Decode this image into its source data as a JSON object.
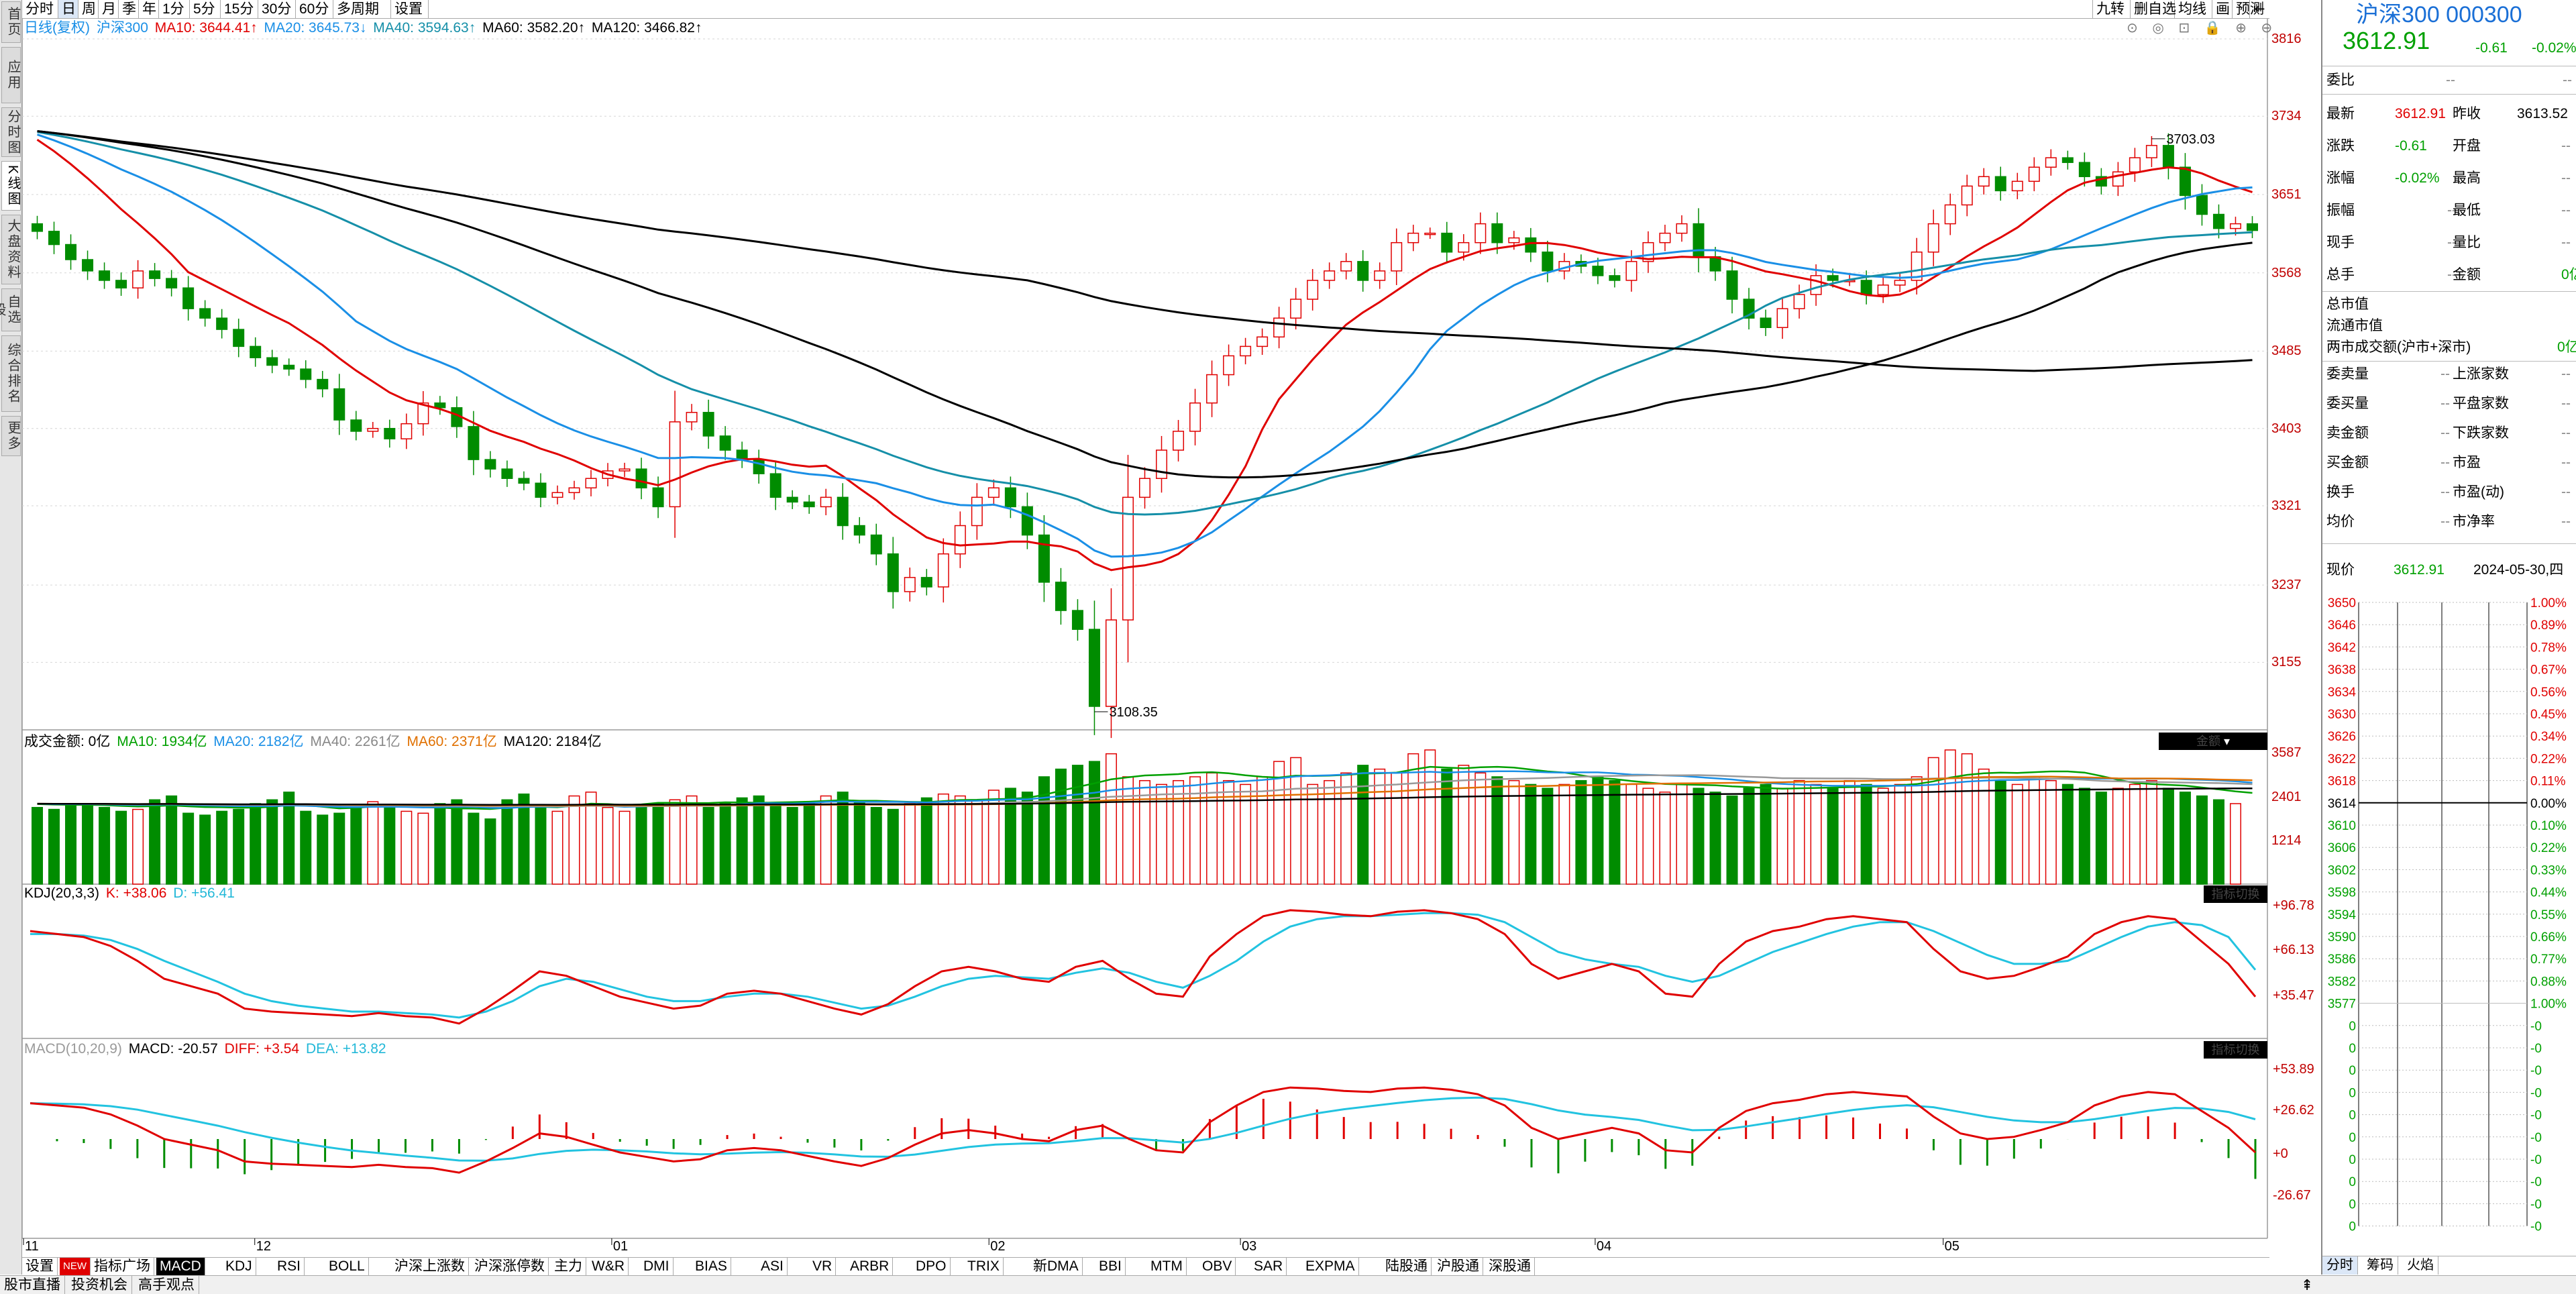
{
  "left_tabs": [
    "首页",
    "应用",
    "分时图",
    "K线图",
    "大盘资料",
    "自选股",
    "综合排名",
    "更多"
  ],
  "period_tabs": [
    "分时",
    "日",
    "周",
    "月",
    "季",
    "年",
    "1分",
    "5分",
    "15分",
    "30分",
    "60分",
    "多周期",
    "设置"
  ],
  "right_tools": [
    "九转",
    "删自选",
    "均线",
    "画",
    "预测"
  ],
  "main_legend": {
    "period": "日线(复权)",
    "name": "沪深300",
    "ma10": "MA10: 3644.41↑",
    "ma20": "MA20: 3645.73↓",
    "ma40": "MA40: 3594.63↑",
    "ma60": "MA60: 3582.20↑",
    "ma120": "MA120: 3466.82↑"
  },
  "price_axis": [
    "3816",
    "3734",
    "3651",
    "3568",
    "3485",
    "3403",
    "3321",
    "3237",
    "3155"
  ],
  "annotations": {
    "high": "3703.03",
    "low": "3108.35"
  },
  "volume_legend": {
    "label": "成交金额: 0亿",
    "ma10": "MA10: 1934亿",
    "ma20": "MA20: 2182亿",
    "ma40": "MA40: 2261亿",
    "ma60": "MA60: 2371亿",
    "ma120": "MA120: 2184亿"
  },
  "volume_axis": [
    "3587",
    "2401",
    "1214"
  ],
  "vol_tag": "金额",
  "kdj_legend": {
    "label": "KDJ(20,3,3)",
    "k": "K: +38.06",
    "d": "D: +56.41"
  },
  "kdj_axis": [
    "+96.78",
    "+66.13",
    "+35.47"
  ],
  "macd_legend": {
    "label": "MACD(10,20,9)",
    "macd": "MACD: -20.57",
    "diff": "DIFF: +3.54",
    "dea": "DEA: +13.82"
  },
  "macd_axis": [
    "+53.89",
    "+26.62",
    "+0",
    "-26.67"
  ],
  "ind_tag": "指标切换",
  "date_axis": [
    "11",
    "12",
    "01",
    "02",
    "03",
    "04",
    "05"
  ],
  "bottom_tabs": [
    "设置",
    "NEW",
    "指标广场",
    "MACD",
    "KDJ",
    "RSI",
    "BOLL",
    "沪深上涨数",
    "沪深涨停数",
    "主力",
    "W&R",
    "DMI",
    "BIAS",
    "ASI",
    "VR",
    "ARBR",
    "DPO",
    "TRIX",
    "新DMA",
    "BBI",
    "MTM",
    "OBV",
    "SAR",
    "EXPMA",
    "陆股通",
    "沪股通",
    "深股通"
  ],
  "status_tabs": [
    "股市直播",
    "投资机会",
    "高手观点"
  ],
  "right_panel": {
    "title": "沪深300 000300",
    "price": "3612.91",
    "change": "-0.61",
    "pct": "-0.02%",
    "weibi_label": "委比",
    "weibi": "--",
    "weicha": "--",
    "quote": [
      {
        "l": "最新",
        "v": "3612.91",
        "c": "red",
        "l2": "昨收",
        "v2": "3613.52",
        "c2": "blk"
      },
      {
        "l": "涨跌",
        "v": "-0.61",
        "c": "grn",
        "l2": "开盘",
        "v2": "--",
        "c2": "gry"
      },
      {
        "l": "涨幅",
        "v": "-0.02%",
        "c": "grn",
        "l2": "最高",
        "v2": "--",
        "c2": "gry"
      },
      {
        "l": "振幅",
        "v": "--",
        "c": "gry",
        "l2": "最低",
        "v2": "--",
        "c2": "gry"
      },
      {
        "l": "现手",
        "v": "--",
        "c": "gry",
        "l2": "量比",
        "v2": "--",
        "c2": "gry"
      },
      {
        "l": "总手",
        "v": "--",
        "c": "gry",
        "l2": "金额",
        "v2": "0亿",
        "c2": "grn"
      }
    ],
    "mkt_total": "总市值",
    "mkt_float": "流通市值",
    "mkt_turn": "两市成交额(沪市+深市)",
    "mkt_turn_v": "0亿",
    "stats": [
      {
        "l": "委卖量",
        "v": "--",
        "l2": "上涨家数",
        "v2": "--"
      },
      {
        "l": "委买量",
        "v": "--",
        "l2": "平盘家数",
        "v2": "--"
      },
      {
        "l": "卖金额",
        "v": "--",
        "l2": "下跌家数",
        "v2": "--"
      },
      {
        "l": "买金额",
        "v": "--",
        "l2": "市盈",
        "v2": "--"
      },
      {
        "l": "换手",
        "v": "--",
        "l2": "市盈(动)",
        "v2": "--"
      },
      {
        "l": "均价",
        "v": "--",
        "l2": "市净率",
        "v2": "--"
      }
    ],
    "now_label": "现价",
    "now_price": "3612.91",
    "now_date": "2024-05-30,四",
    "grid_left": [
      "3650",
      "3646",
      "3642",
      "3638",
      "3634",
      "3630",
      "3626",
      "3622",
      "3618",
      "3614",
      "3610",
      "3606",
      "3602",
      "3598",
      "3594",
      "3590",
      "3586",
      "3582",
      "3577",
      "0",
      "0",
      "0",
      "0",
      "0",
      "0",
      "0",
      "0",
      "0",
      "0"
    ],
    "grid_right": [
      "1.00%",
      "0.89%",
      "0.78%",
      "0.67%",
      "0.56%",
      "0.45%",
      "0.34%",
      "0.22%",
      "0.11%",
      "0.00%",
      "0.10%",
      "0.22%",
      "0.33%",
      "0.44%",
      "0.55%",
      "0.66%",
      "0.77%",
      "0.88%",
      "1.00%",
      "-0",
      "-0",
      "-0",
      "-0",
      "-0",
      "-0",
      "-0",
      "-0",
      "-0",
      "-0"
    ],
    "tabs": [
      "分时",
      "筹码",
      "火焰"
    ]
  },
  "colors": {
    "up": "#e00000",
    "down": "#008c00",
    "ma10": "#e00000",
    "ma20": "#1a8fe6",
    "ma40": "#158fa8",
    "ma60": "#000000",
    "ma120": "#000000",
    "k": "#e00000",
    "d": "#22c3e0",
    "diff": "#e00000",
    "dea": "#22c3e0"
  },
  "chart_data": {
    "type": "candlestick",
    "title": "沪深300",
    "dates": [
      "11",
      "12",
      "01",
      "02",
      "03",
      "04",
      "05"
    ],
    "ylim": [
      3108.35,
      3816
    ],
    "candles_close": [
      3612,
      3598,
      3582,
      3570,
      3560,
      3552,
      3570,
      3562,
      3552,
      3530,
      3520,
      3508,
      3490,
      3478,
      3470,
      3466,
      3455,
      3445,
      3412,
      3400,
      3403,
      3392,
      3408,
      3430,
      3425,
      3405,
      3370,
      3360,
      3350,
      3345,
      3330,
      3335,
      3340,
      3350,
      3358,
      3360,
      3340,
      3320,
      3410,
      3420,
      3395,
      3380,
      3370,
      3355,
      3330,
      3325,
      3320,
      3330,
      3300,
      3290,
      3270,
      3230,
      3245,
      3235,
      3270,
      3300,
      3330,
      3340,
      3320,
      3290,
      3240,
      3210,
      3190,
      3108.35,
      3200,
      3330,
      3350,
      3380,
      3400,
      3430,
      3460,
      3480,
      3490,
      3500,
      3520,
      3540,
      3560,
      3570,
      3580,
      3560,
      3570,
      3600,
      3610,
      3610,
      3590,
      3600,
      3620,
      3600,
      3605,
      3590,
      3570,
      3580,
      3575,
      3565,
      3560,
      3580,
      3600,
      3610,
      3620,
      3585,
      3570,
      3540,
      3520,
      3510,
      3530,
      3545,
      3565,
      3560,
      3560,
      3545,
      3555,
      3560,
      3590,
      3620,
      3640,
      3660,
      3670,
      3655,
      3665,
      3680,
      3690,
      3685,
      3670,
      3660,
      3675,
      3690,
      3703.03,
      3680,
      3650,
      3630,
      3615,
      3620,
      3612.91
    ],
    "volume_yi": [
      2000,
      1950,
      2050,
      2100,
      2000,
      1900,
      1950,
      2200,
      2300,
      1850,
      1800,
      1900,
      1950,
      2100,
      2200,
      2400,
      1900,
      1800,
      1850,
      2000,
      2150,
      2000,
      1900,
      1850,
      2100,
      2200,
      1850,
      1700,
      2200,
      2350,
      2000,
      1900,
      2300,
      2400,
      2000,
      1900,
      2050,
      2100,
      2200,
      2300,
      2000,
      2100,
      2250,
      2300,
      2100,
      2000,
      2150,
      2300,
      2400,
      2150,
      2000,
      1950,
      2100,
      2250,
      2350,
      2300,
      2200,
      2450,
      2500,
      2400,
      2800,
      3000,
      3100,
      3200,
      3400,
      2800,
      2700,
      2600,
      2700,
      2800,
      2900,
      2700,
      2600,
      2800,
      3200,
      3300,
      2600,
      2700,
      2900,
      3100,
      3000,
      2900,
      3400,
      3500,
      3000,
      3100,
      2900,
      2800,
      2700,
      2600,
      2500,
      2600,
      2700,
      2800,
      2700,
      2600,
      2500,
      2400,
      2600,
      2500,
      2400,
      2300,
      2500,
      2600,
      2500,
      2700,
      2600,
      2500,
      2700,
      2600,
      2500,
      2600,
      2800,
      3300,
      3500,
      3400,
      3000,
      2700,
      2600,
      2800,
      2700,
      2600,
      2500,
      2400,
      2500,
      2600,
      2700,
      2500,
      2400,
      2300,
      2200,
      2100,
      0
    ],
    "kdj_k": [
      82,
      80,
      78,
      72,
      62,
      50,
      45,
      40,
      30,
      28,
      27,
      26,
      25,
      27,
      25,
      24,
      20,
      30,
      42,
      55,
      52,
      45,
      38,
      34,
      30,
      32,
      40,
      42,
      40,
      35,
      30,
      26,
      33,
      45,
      55,
      58,
      55,
      50,
      48,
      58,
      62,
      50,
      40,
      38,
      65,
      80,
      92,
      96,
      95,
      93,
      92,
      95,
      96,
      94,
      90,
      80,
      60,
      50,
      55,
      60,
      55,
      40,
      38,
      60,
      75,
      82,
      85,
      90,
      92,
      90,
      88,
      70,
      55,
      50,
      52,
      58,
      65,
      80,
      88,
      92,
      90,
      75,
      60,
      38
    ],
    "kdj_d": [
      80,
      80,
      79,
      76,
      70,
      62,
      55,
      48,
      40,
      35,
      32,
      30,
      28,
      28,
      27,
      26,
      24,
      28,
      35,
      45,
      50,
      48,
      43,
      38,
      35,
      35,
      38,
      40,
      40,
      38,
      34,
      30,
      32,
      38,
      45,
      50,
      52,
      51,
      50,
      54,
      57,
      54,
      48,
      44,
      52,
      62,
      75,
      85,
      90,
      92,
      92,
      93,
      94,
      94,
      93,
      88,
      78,
      68,
      63,
      60,
      58,
      52,
      48,
      52,
      60,
      68,
      74,
      80,
      85,
      88,
      88,
      82,
      74,
      66,
      60,
      60,
      62,
      70,
      78,
      85,
      88,
      86,
      78,
      56
    ]
  }
}
